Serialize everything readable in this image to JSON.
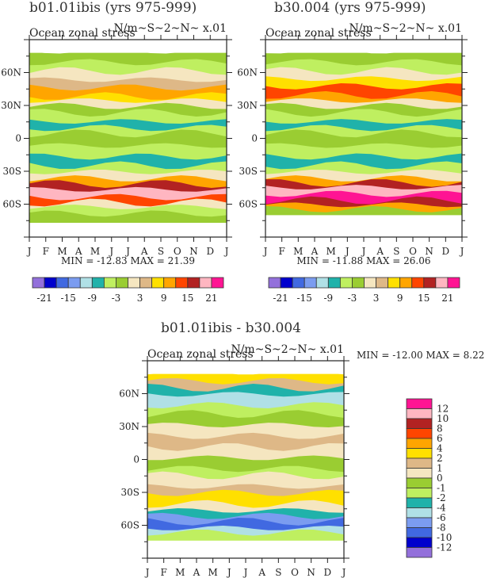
{
  "palette": {
    "colors": [
      "#9370DB",
      "#0000CD",
      "#4169E1",
      "#7B9CF0",
      "#B0E0E6",
      "#20B2AA",
      "#BFEF60",
      "#9ACD32",
      "#F5E6C0",
      "#DEB887",
      "#FFE000",
      "#FFA500",
      "#FF4500",
      "#B22222",
      "#FFB6C1",
      "#FF1493"
    ]
  },
  "chart_data": [
    {
      "type": "heatmap",
      "title": "b01.01ibis (yrs 975-999)",
      "left_label": "Ocean zonal stress",
      "right_label": "N/m~S~2~N~ x.01",
      "x_ticks": [
        "J",
        "F",
        "M",
        "A",
        "M",
        "J",
        "J",
        "A",
        "S",
        "O",
        "N",
        "D",
        "J"
      ],
      "y_ticks": [
        "60N",
        "30N",
        "0",
        "30S",
        "60S"
      ],
      "y_tick_values": [
        60,
        30,
        0,
        -30,
        -60
      ],
      "ylim": [
        -90,
        90
      ],
      "stats": "MIN = -12.83 MAX =   21.39",
      "min": -12.83,
      "max": 21.39,
      "colorbar_labels": [
        "-21",
        "-15",
        "-9",
        "-3",
        "3",
        "9",
        "15",
        "21"
      ],
      "colorbar_levels": [
        -21,
        -18,
        -15,
        -12,
        -9,
        -6,
        -3,
        0,
        3,
        6,
        9,
        12,
        15,
        18,
        21
      ],
      "valid_lat": [
        -77,
        78
      ],
      "bands_by_lat": [
        {
          "lat": 78,
          "level": 7
        },
        {
          "lat": 68,
          "level": 6
        },
        {
          "lat": 60,
          "level": 8
        },
        {
          "lat": 52,
          "level": 9
        },
        {
          "lat": 45,
          "level": 11
        },
        {
          "lat": 37,
          "level": 10
        },
        {
          "lat": 33,
          "level": 8
        },
        {
          "lat": 28,
          "level": 7
        },
        {
          "lat": 22,
          "level": 6
        },
        {
          "lat": 14,
          "level": 5
        },
        {
          "lat": 8,
          "level": 6
        },
        {
          "lat": 3,
          "level": 7
        },
        {
          "lat": -8,
          "level": 6
        },
        {
          "lat": -18,
          "level": 5
        },
        {
          "lat": -26,
          "level": 6
        },
        {
          "lat": -32,
          "level": 8
        },
        {
          "lat": -38,
          "level": 11
        },
        {
          "lat": -43,
          "level": 13
        },
        {
          "lat": -48,
          "level": 14
        },
        {
          "lat": -55,
          "level": 12
        },
        {
          "lat": -60,
          "level": 8
        },
        {
          "lat": -64,
          "level": 6
        },
        {
          "lat": -70,
          "level": 7
        }
      ]
    },
    {
      "type": "heatmap",
      "title": "b30.004 (yrs 975-999)",
      "left_label": "Ocean zonal stress",
      "right_label": "N/m~S~2~N~ x.01",
      "x_ticks": [
        "J",
        "F",
        "M",
        "A",
        "M",
        "J",
        "J",
        "A",
        "S",
        "O",
        "N",
        "D",
        "J"
      ],
      "y_ticks": [
        "60N",
        "30N",
        "0",
        "30S",
        "60S"
      ],
      "y_tick_values": [
        60,
        30,
        0,
        -30,
        -60
      ],
      "ylim": [
        -90,
        90
      ],
      "stats": "MIN = -11.88 MAX =   26.06",
      "min": -11.88,
      "max": 26.06,
      "colorbar_labels": [
        "-21",
        "-15",
        "-9",
        "-3",
        "3",
        "9",
        "15",
        "21"
      ],
      "colorbar_levels": [
        -21,
        -18,
        -15,
        -12,
        -9,
        -6,
        -3,
        0,
        3,
        6,
        9,
        12,
        15,
        18,
        21
      ],
      "valid_lat": [
        -70,
        78
      ],
      "bands_by_lat": [
        {
          "lat": 78,
          "level": 7
        },
        {
          "lat": 68,
          "level": 6
        },
        {
          "lat": 60,
          "level": 8
        },
        {
          "lat": 53,
          "level": 10
        },
        {
          "lat": 46,
          "level": 12
        },
        {
          "lat": 38,
          "level": 11
        },
        {
          "lat": 33,
          "level": 8
        },
        {
          "lat": 28,
          "level": 7
        },
        {
          "lat": 22,
          "level": 6
        },
        {
          "lat": 14,
          "level": 5
        },
        {
          "lat": 8,
          "level": 6
        },
        {
          "lat": 3,
          "level": 7
        },
        {
          "lat": -8,
          "level": 6
        },
        {
          "lat": -18,
          "level": 5
        },
        {
          "lat": -26,
          "level": 6
        },
        {
          "lat": -32,
          "level": 8
        },
        {
          "lat": -38,
          "level": 11
        },
        {
          "lat": -42,
          "level": 13
        },
        {
          "lat": -46,
          "level": 14
        },
        {
          "lat": -52,
          "level": 15
        },
        {
          "lat": -58,
          "level": 13
        },
        {
          "lat": -62,
          "level": 11
        },
        {
          "lat": -66,
          "level": 7
        }
      ]
    },
    {
      "type": "heatmap",
      "title": "b01.01ibis  -  b30.004",
      "left_label": "Ocean zonal stress",
      "right_label": "N/m~S~2~N~ x.01",
      "x_ticks": [
        "J",
        "F",
        "M",
        "A",
        "M",
        "J",
        "J",
        "A",
        "S",
        "O",
        "N",
        "D",
        "J"
      ],
      "y_ticks": [
        "60N",
        "30N",
        "0",
        "30S",
        "60S"
      ],
      "y_tick_values": [
        60,
        30,
        0,
        -30,
        -60
      ],
      "ylim": [
        -90,
        90
      ],
      "stats": "MIN = -12.00 MAX =     8.22",
      "min": -12.0,
      "max": 8.22,
      "colorbar_labels": [
        "12",
        "10",
        "8",
        "6",
        "4",
        "2",
        "1",
        "0",
        "-1",
        "-2",
        "-4",
        "-6",
        "-8",
        "-10",
        "-12"
      ],
      "colorbar_levels": [
        -12,
        -10,
        -8,
        -6,
        -4,
        -2,
        -1,
        0,
        1,
        2,
        4,
        6,
        8,
        10,
        12
      ],
      "valid_lat": [
        -74,
        78
      ],
      "bands_by_lat": [
        {
          "lat": 78,
          "level": 10
        },
        {
          "lat": 70,
          "level": 9
        },
        {
          "lat": 64,
          "level": 5
        },
        {
          "lat": 58,
          "level": 4
        },
        {
          "lat": 48,
          "level": 6
        },
        {
          "lat": 40,
          "level": 7
        },
        {
          "lat": 30,
          "level": 8
        },
        {
          "lat": 20,
          "level": 9
        },
        {
          "lat": 10,
          "level": 8
        },
        {
          "lat": 0,
          "level": 7
        },
        {
          "lat": -10,
          "level": 6
        },
        {
          "lat": -16,
          "level": 8
        },
        {
          "lat": -26,
          "level": 9
        },
        {
          "lat": -32,
          "level": 10
        },
        {
          "lat": -42,
          "level": 8
        },
        {
          "lat": -48,
          "level": 5
        },
        {
          "lat": -53,
          "level": 3
        },
        {
          "lat": -58,
          "level": 2
        },
        {
          "lat": -64,
          "level": 4
        },
        {
          "lat": -68,
          "level": 6
        }
      ]
    }
  ]
}
